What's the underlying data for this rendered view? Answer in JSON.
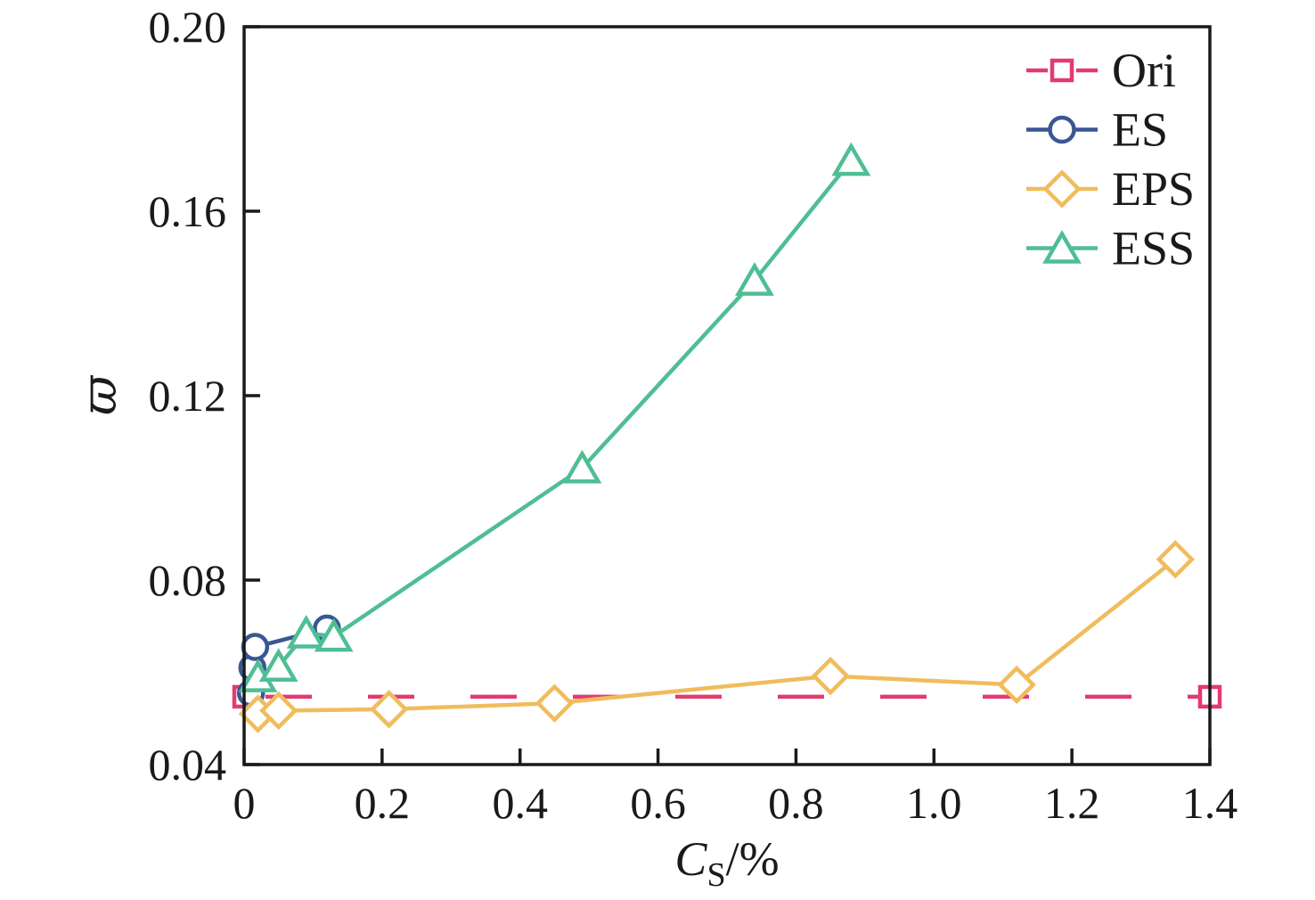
{
  "figure": {
    "background": "#ffffff",
    "axis_color": "#1a1a1a",
    "text_color": "#1a1a1a"
  },
  "chart_data": {
    "type": "line",
    "title": "",
    "xlabel": {
      "variable": "C",
      "subscript": "S",
      "unit": "/%"
    },
    "ylabel": "ϖ",
    "xlim": [
      0,
      1.4
    ],
    "ylim": [
      0.04,
      0.2
    ],
    "xticks": {
      "values": [
        0,
        0.2,
        0.4,
        0.6,
        0.8,
        1.0,
        1.2,
        1.4
      ],
      "labels": [
        "0",
        "0.2",
        "0.4",
        "0.6",
        "0.8",
        "1.0",
        "1.2",
        "1.4"
      ]
    },
    "yticks": {
      "values": [
        0.04,
        0.08,
        0.12,
        0.16,
        0.2
      ],
      "labels": [
        "0.04",
        "0.08",
        "0.12",
        "0.16",
        "0.20"
      ]
    },
    "grid": false,
    "frame": "box",
    "legend": {
      "position": "top-right",
      "entries": [
        "Ori",
        "ES",
        "EPS",
        "ESS"
      ]
    },
    "series": [
      {
        "name": "Ori",
        "color": "#e23a72",
        "marker": "square",
        "line_style": "dashed",
        "points": [
          [
            0,
            0.0547
          ],
          [
            1.4,
            0.0547
          ]
        ]
      },
      {
        "name": "ES",
        "color": "#3a5794",
        "marker": "circle",
        "line_style": "solid",
        "points": [
          [
            0.01,
            0.0555
          ],
          [
            0.012,
            0.061
          ],
          [
            0.016,
            0.0655
          ],
          [
            0.12,
            0.0695
          ]
        ]
      },
      {
        "name": "EPS",
        "color": "#f0bc5c",
        "marker": "diamond",
        "line_style": "solid",
        "points": [
          [
            0.02,
            0.051
          ],
          [
            0.05,
            0.0517
          ],
          [
            0.21,
            0.052
          ],
          [
            0.45,
            0.0533
          ],
          [
            0.85,
            0.0592
          ],
          [
            1.12,
            0.0573
          ],
          [
            1.35,
            0.0845
          ]
        ]
      },
      {
        "name": "ESS",
        "color": "#4fbe94",
        "marker": "triangle",
        "line_style": "solid",
        "points": [
          [
            0.02,
            0.059
          ],
          [
            0.05,
            0.0613
          ],
          [
            0.09,
            0.0685
          ],
          [
            0.13,
            0.0678
          ],
          [
            0.49,
            0.1043
          ],
          [
            0.74,
            0.145
          ],
          [
            0.88,
            0.171
          ]
        ]
      }
    ]
  }
}
